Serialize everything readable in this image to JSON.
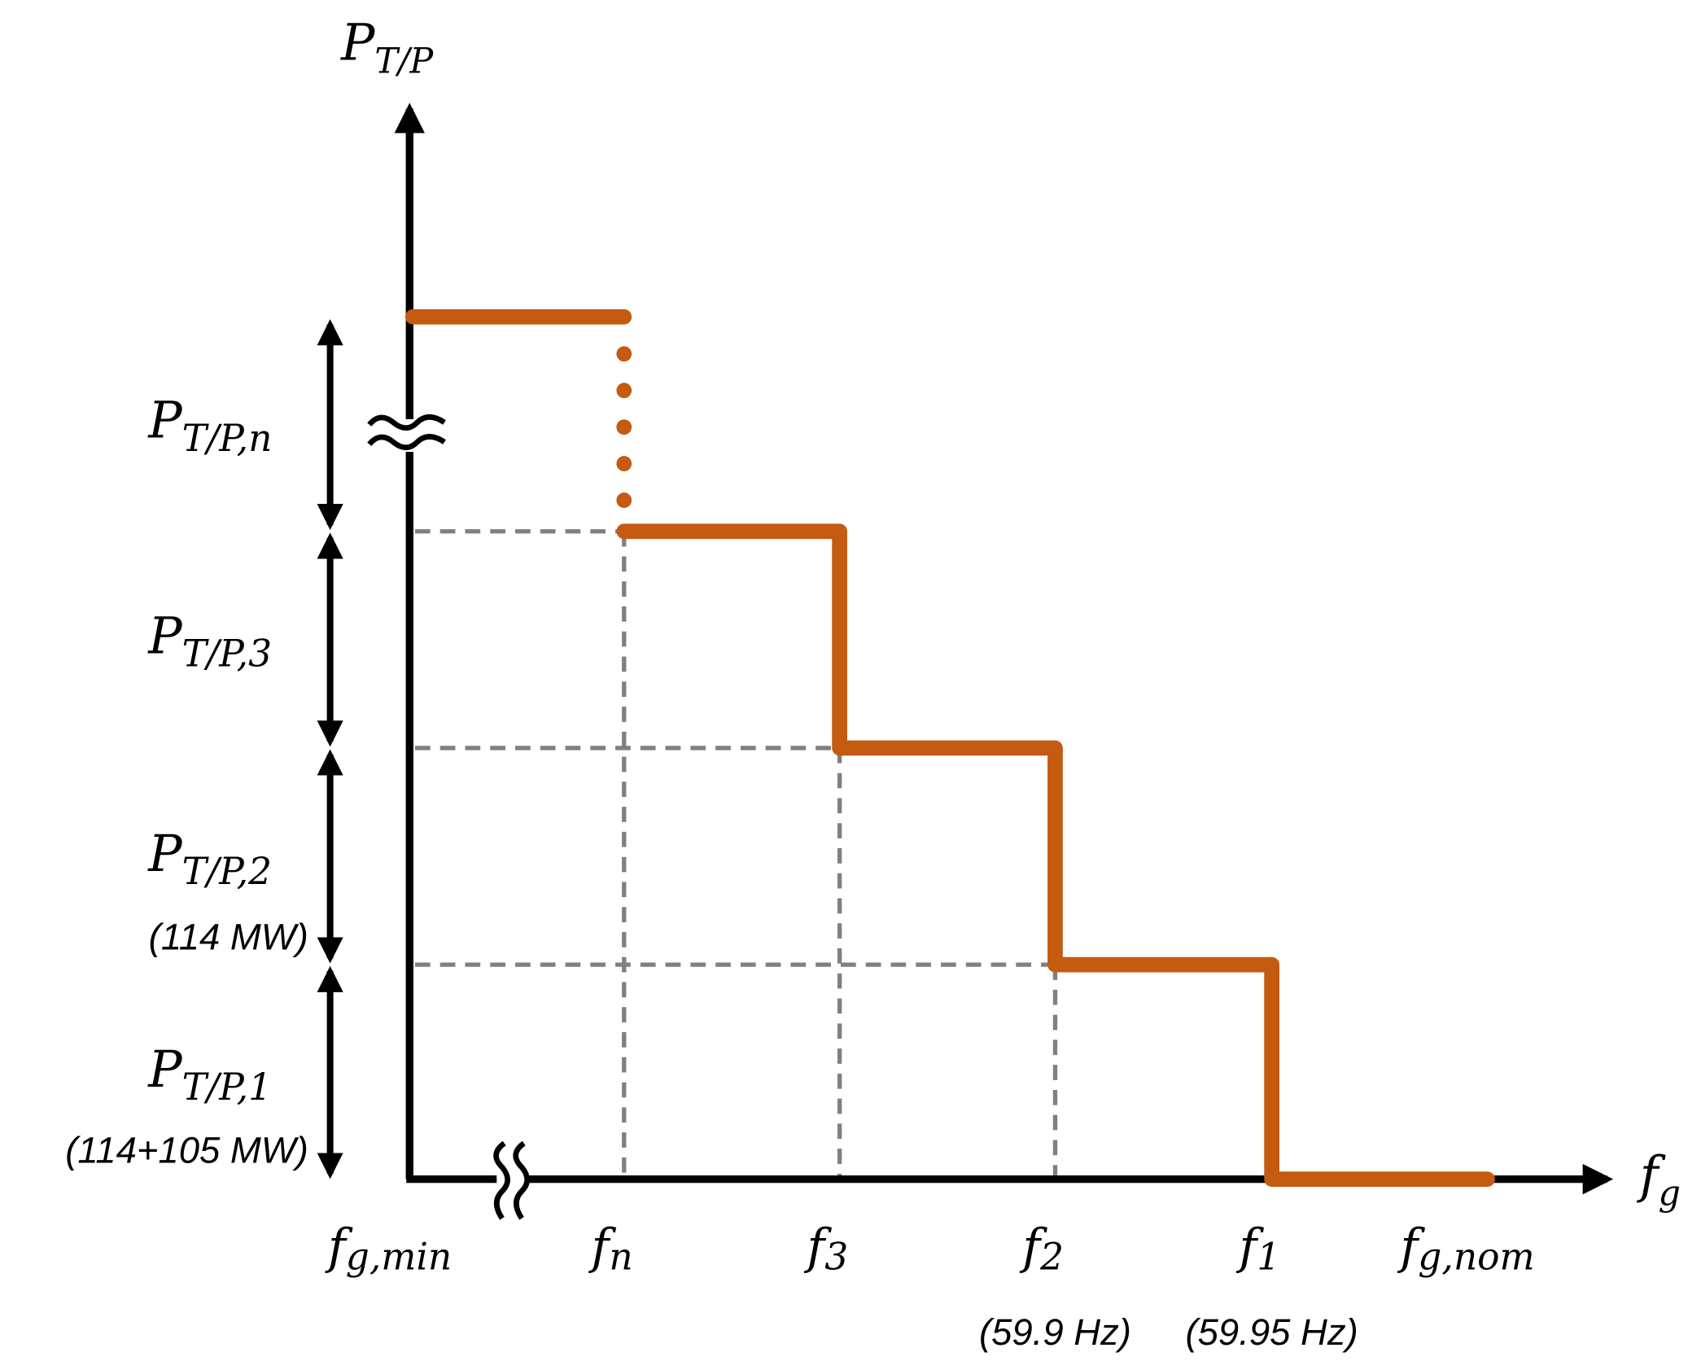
{
  "colors": {
    "step": "#c55a11",
    "axis": "#000000",
    "grid": "#808080"
  },
  "y_axis": {
    "main": "P",
    "sub": "T/P"
  },
  "x_axis": {
    "main": "f",
    "sub": "g"
  },
  "x_ticks": [
    {
      "main": "f",
      "sub": "g,min",
      "note": ""
    },
    {
      "main": "f",
      "sub": "n",
      "note": ""
    },
    {
      "main": "f",
      "sub": "3",
      "note": ""
    },
    {
      "main": "f",
      "sub": "2",
      "note": "(59.9 Hz)"
    },
    {
      "main": "f",
      "sub": "1",
      "note": "(59.95 Hz)"
    },
    {
      "main": "f",
      "sub": "g,nom",
      "note": ""
    }
  ],
  "power_blocks": [
    {
      "main": "P",
      "sub": "T/P,1",
      "note": "(114+105 MW)"
    },
    {
      "main": "P",
      "sub": "T/P,2",
      "note": "(114 MW)"
    },
    {
      "main": "P",
      "sub": "T/P,3",
      "note": ""
    },
    {
      "main": "P",
      "sub": "T/P,n",
      "note": ""
    }
  ],
  "chart_data": {
    "type": "line",
    "subtype": "step",
    "description_axis_break": [
      "x-axis between f_g,min and f_n",
      "y-axis between P_T/P,3 and P_T/P,n"
    ],
    "steps": [
      {
        "from": "f_g,min",
        "to": "f_n",
        "level_blocks": 4,
        "style": "solid"
      },
      {
        "from": "f_n",
        "to": "f_n",
        "level_blocks": [
          4,
          3
        ],
        "style": "dotted"
      },
      {
        "from": "f_n",
        "to": "f_3",
        "level_blocks": 3,
        "style": "solid"
      },
      {
        "from": "f_3",
        "to": "f_2",
        "level_blocks": 2,
        "style": "solid"
      },
      {
        "from": "f_2",
        "to": "f_1",
        "level_blocks": 1,
        "style": "solid"
      },
      {
        "from": "f_1",
        "to": "f_g,nom",
        "level_blocks": 0,
        "style": "solid"
      }
    ],
    "grid": "dashed guides at step corners"
  }
}
